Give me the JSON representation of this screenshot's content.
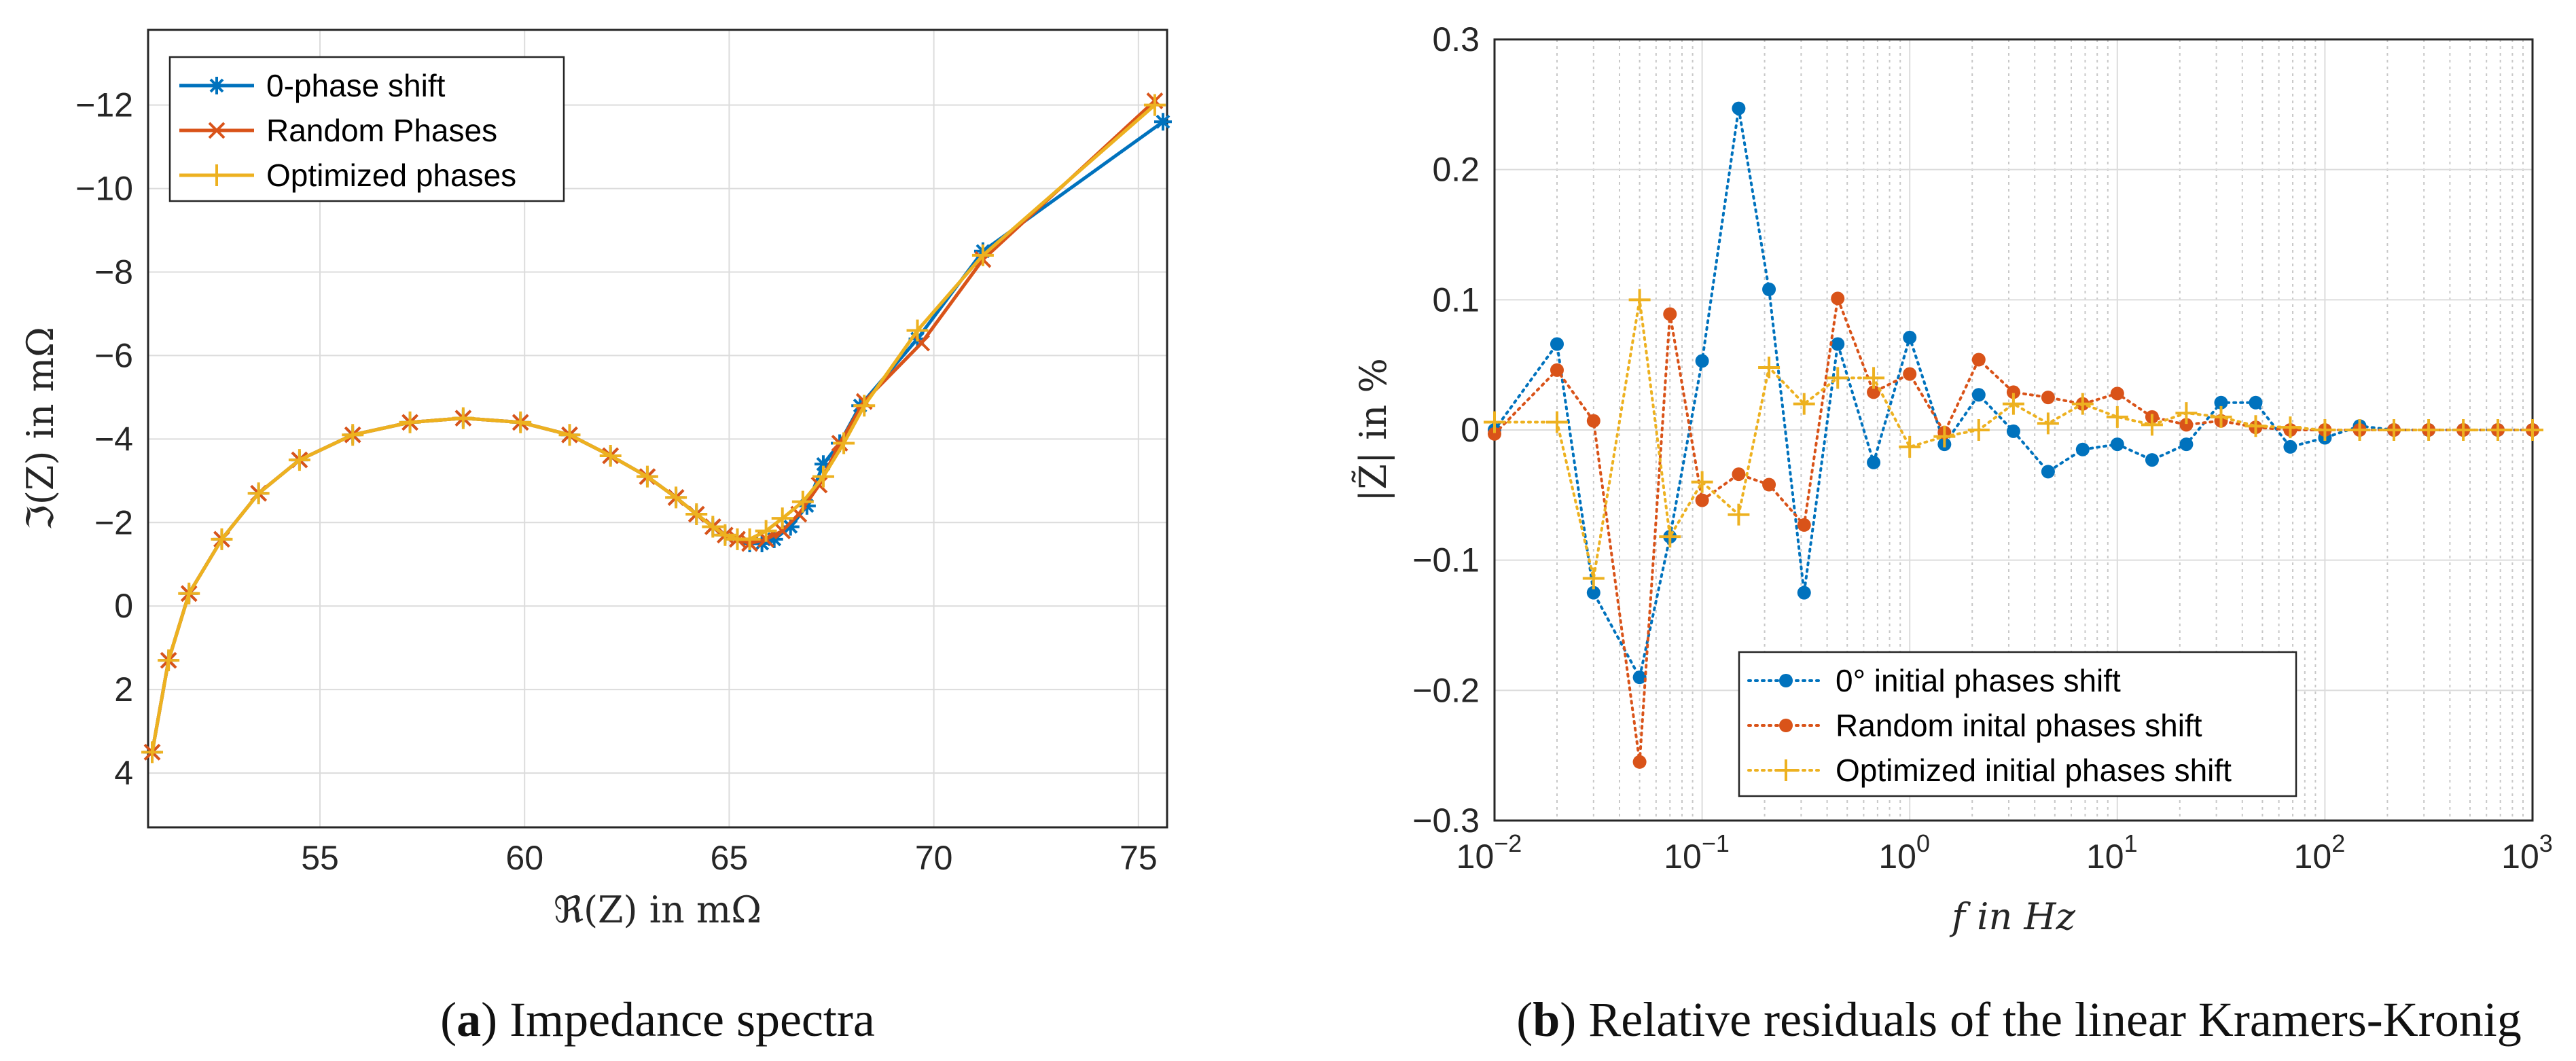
{
  "chart_data": [
    {
      "type": "line",
      "panel": "a",
      "xlabel": "ℜ(Z) in mΩ",
      "ylabel": "ℑ(Z) in mΩ",
      "xlim": [
        50.8,
        75.7
      ],
      "ylim": [
        5.3,
        -13.8
      ],
      "y_reversed": true,
      "grid": true,
      "x_ticks": [
        55,
        60,
        65,
        70,
        75
      ],
      "x_tick_labels": [
        "55",
        "60",
        "65",
        "70",
        "75"
      ],
      "y_ticks": [
        -12,
        -10,
        -8,
        -6,
        -4,
        -2,
        0,
        2,
        4
      ],
      "y_tick_labels": [
        "−12",
        "−10",
        "−8",
        "−6",
        "−4",
        "−2",
        "0",
        "2",
        "4"
      ],
      "legend_position": "top-left",
      "caption_label": "a",
      "caption_text": "Impedance spectra",
      "series": [
        {
          "name": "0-phase shift",
          "color": "#0072BD",
          "marker": "asterisk",
          "x": [
            50.9,
            51.3,
            51.8,
            52.6,
            53.5,
            54.5,
            55.8,
            57.2,
            58.5,
            59.9,
            61.1,
            62.1,
            63.0,
            63.7,
            64.2,
            64.6,
            64.9,
            65.2,
            65.5,
            65.8,
            66.1,
            66.5,
            66.9,
            67.3,
            67.7,
            68.2,
            69.6,
            71.2,
            75.6
          ],
          "y": [
            3.5,
            1.3,
            -0.3,
            -1.6,
            -2.7,
            -3.5,
            -4.1,
            -4.4,
            -4.5,
            -4.4,
            -4.1,
            -3.6,
            -3.1,
            -2.6,
            -2.2,
            -1.9,
            -1.7,
            -1.6,
            -1.5,
            -1.5,
            -1.6,
            -1.9,
            -2.4,
            -3.4,
            -3.9,
            -4.8,
            -6.4,
            -8.5,
            -11.6
          ]
        },
        {
          "name": "Random Phases",
          "color": "#D95319",
          "marker": "x",
          "x": [
            50.9,
            51.3,
            51.8,
            52.6,
            53.5,
            54.5,
            55.8,
            57.2,
            58.5,
            59.9,
            61.1,
            62.1,
            63.0,
            63.7,
            64.2,
            64.6,
            64.9,
            65.2,
            65.5,
            65.9,
            66.3,
            66.7,
            67.2,
            67.7,
            68.3,
            69.7,
            71.2,
            75.4
          ],
          "y": [
            3.5,
            1.3,
            -0.3,
            -1.6,
            -2.7,
            -3.5,
            -4.1,
            -4.4,
            -4.5,
            -4.4,
            -4.1,
            -3.6,
            -3.1,
            -2.6,
            -2.2,
            -1.9,
            -1.7,
            -1.6,
            -1.5,
            -1.6,
            -1.8,
            -2.2,
            -2.9,
            -3.9,
            -4.9,
            -6.3,
            -8.3,
            -12.1
          ]
        },
        {
          "name": "Optimized phases",
          "color": "#EDB120",
          "marker": "plus",
          "x": [
            50.9,
            51.3,
            51.8,
            52.6,
            53.5,
            54.5,
            55.8,
            57.2,
            58.5,
            59.9,
            61.1,
            62.1,
            63.0,
            63.7,
            64.2,
            64.6,
            64.9,
            65.2,
            65.5,
            65.9,
            66.3,
            66.8,
            67.3,
            67.8,
            68.3,
            69.6,
            71.2,
            75.4
          ],
          "y": [
            3.5,
            1.3,
            -0.3,
            -1.6,
            -2.7,
            -3.5,
            -4.1,
            -4.4,
            -4.5,
            -4.4,
            -4.1,
            -3.6,
            -3.1,
            -2.6,
            -2.2,
            -1.9,
            -1.7,
            -1.6,
            -1.6,
            -1.8,
            -2.1,
            -2.5,
            -3.1,
            -3.9,
            -4.8,
            -6.6,
            -8.4,
            -12.0
          ]
        }
      ]
    },
    {
      "type": "line",
      "panel": "b",
      "xlabel": "f in Hz",
      "ylabel": "|Z̃| in %",
      "xscale": "log",
      "xlim": [
        0.01,
        1000
      ],
      "ylim": [
        -0.3,
        0.3
      ],
      "grid": true,
      "x_ticks": [
        0.01,
        0.1,
        1,
        10,
        100,
        1000
      ],
      "x_tick_bases": [
        "10",
        "10",
        "10",
        "10",
        "10",
        "10"
      ],
      "x_tick_exponents": [
        "−2",
        "−1",
        "0",
        "1",
        "2",
        "3"
      ],
      "y_ticks": [
        -0.3,
        -0.2,
        -0.1,
        0,
        0.1,
        0.2,
        0.3
      ],
      "y_tick_labels": [
        "−0.3",
        "−0.2",
        "−0.1",
        "0",
        "0.1",
        "0.2",
        "0.3"
      ],
      "legend_position": "bottom-right",
      "caption_label": "b",
      "caption_text": "Relative residuals of the linear Kramers-Kronig",
      "x": [
        0.01,
        0.02,
        0.03,
        0.05,
        0.07,
        0.1,
        0.15,
        0.21,
        0.31,
        0.45,
        0.67,
        1.0,
        1.47,
        2.15,
        3.16,
        4.64,
        6.81,
        10,
        14.7,
        21.5,
        31.6,
        46.4,
        68.1,
        100,
        147,
        215,
        316,
        464,
        681,
        1000
      ],
      "series": [
        {
          "name": "0° initial phases shift",
          "color": "#0072BD",
          "marker": "dot",
          "values": [
            0.0,
            0.066,
            -0.125,
            -0.19,
            -0.082,
            0.053,
            0.247,
            0.108,
            -0.125,
            0.066,
            -0.025,
            0.071,
            -0.011,
            0.027,
            -0.001,
            -0.032,
            -0.015,
            -0.011,
            -0.023,
            -0.011,
            0.021,
            0.021,
            -0.013,
            -0.006,
            0.003,
            0.0,
            0.0,
            0.0,
            0.0,
            0.0
          ]
        },
        {
          "name": "Random inital phases shift",
          "color": "#D95319",
          "marker": "dot",
          "values": [
            -0.003,
            0.046,
            0.007,
            -0.255,
            0.089,
            -0.054,
            -0.034,
            -0.042,
            -0.073,
            0.101,
            0.029,
            0.043,
            -0.002,
            0.054,
            0.029,
            0.025,
            0.02,
            0.028,
            0.01,
            0.004,
            0.007,
            0.002,
            0.0,
            0.0,
            0.0,
            0.0,
            0.0,
            0.0,
            0.0,
            0.0
          ]
        },
        {
          "name": "Optimized initial phases shift",
          "color": "#EDB120",
          "marker": "plus",
          "values": [
            0.006,
            0.006,
            -0.114,
            0.1,
            -0.082,
            -0.04,
            -0.065,
            0.048,
            0.02,
            0.04,
            0.04,
            -0.013,
            -0.005,
            0.0,
            0.02,
            0.005,
            0.02,
            0.01,
            0.004,
            0.013,
            0.01,
            0.003,
            0.002,
            0.0,
            0.0,
            0.0,
            0.0,
            0.0,
            0.0,
            0.0
          ]
        }
      ]
    }
  ]
}
